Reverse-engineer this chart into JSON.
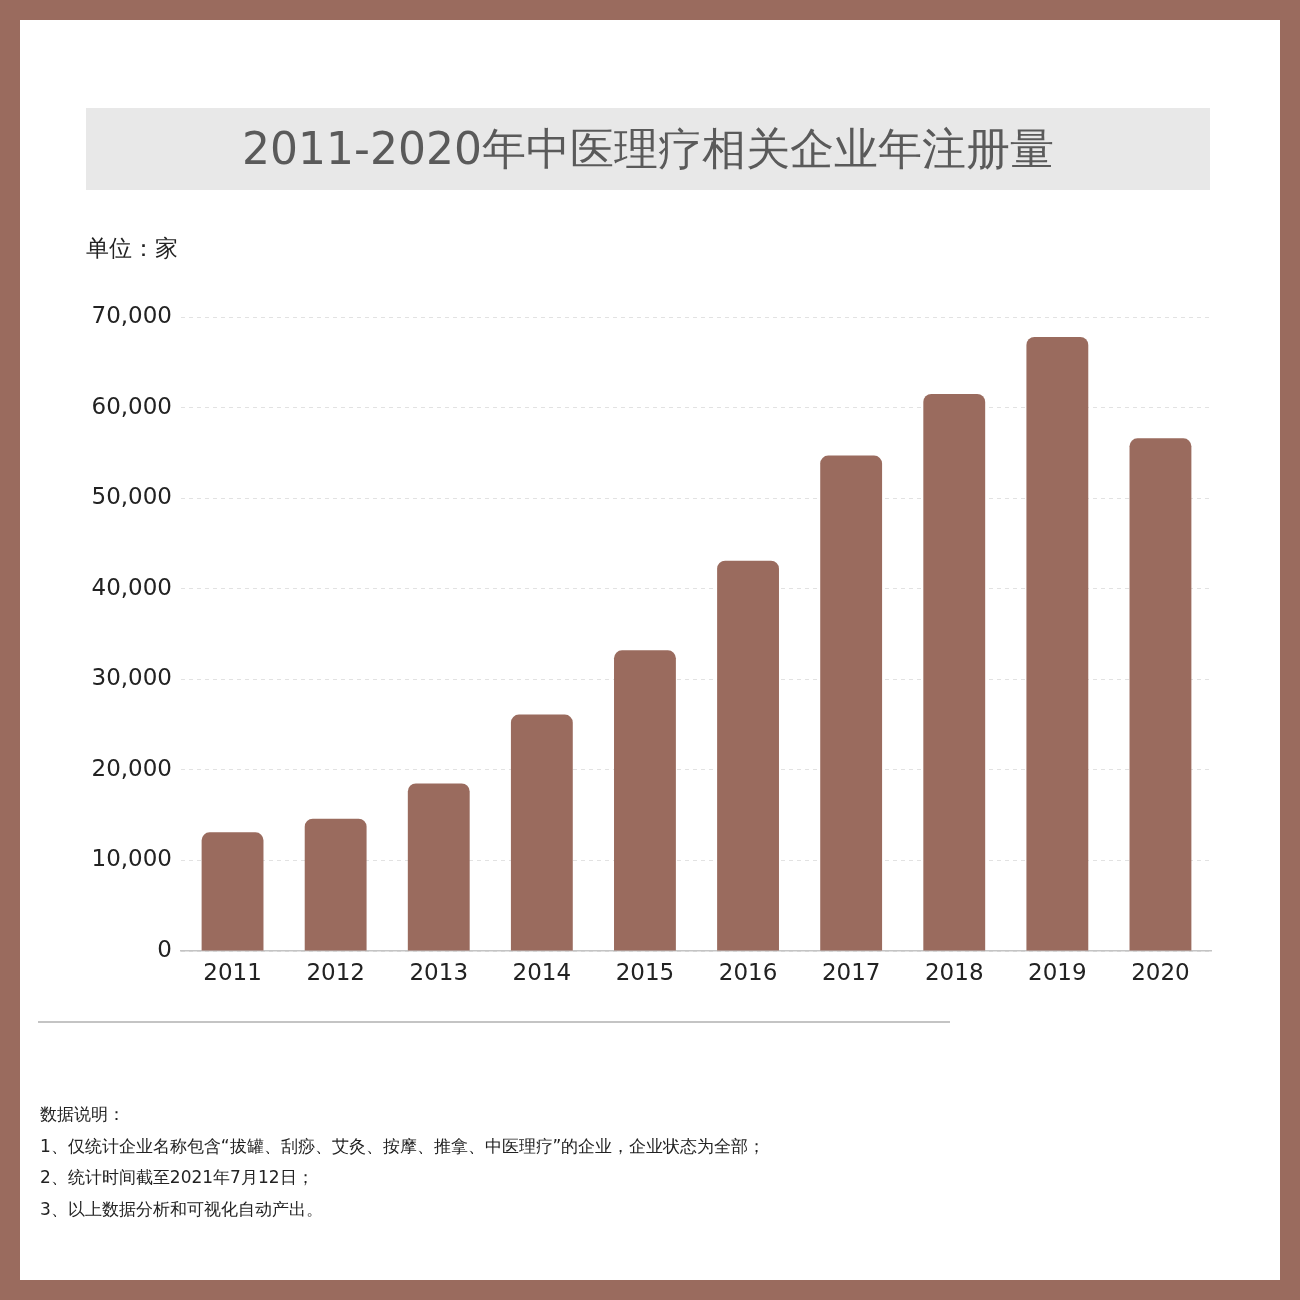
{
  "chart_data": {
    "type": "bar",
    "title": "2011-2020年中医理疗相关企业年注册量",
    "ylabel": "单位：家",
    "categories": [
      "2011",
      "2012",
      "2013",
      "2014",
      "2015",
      "2016",
      "2017",
      "2018",
      "2019",
      "2020"
    ],
    "values": [
      13100,
      14600,
      18500,
      26100,
      33200,
      43100,
      54700,
      61500,
      67800,
      56600
    ],
    "color": "#9a6b5e",
    "ylim": [
      0,
      70000
    ],
    "yticks": [
      0,
      {
        "value": 10000,
        "label": "10,000"
      },
      {
        "value": 20000,
        "label": "20,000"
      },
      {
        "value": 30000,
        "label": "30,000"
      },
      {
        "value": 40000,
        "label": "40,000"
      },
      {
        "value": 50000,
        "label": "50,000"
      },
      {
        "value": 60000,
        "label": "60,000"
      },
      {
        "value": 70000,
        "label": "70,000"
      }
    ],
    "grid": "y",
    "legend": false,
    "annotations": [
      "数据说明：",
      "1、仅统计企业名称包含“拔罐、刮痧、艾灸、按摩、推拿、中医理疗”的企业，企业状态为全部；",
      "2、统计时间截至2021年7月12日；",
      "3、以上数据分析和可视化自动产出。"
    ]
  }
}
